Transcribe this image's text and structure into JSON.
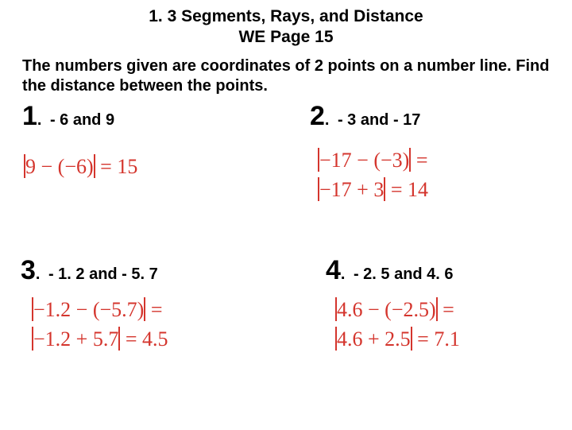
{
  "heading": {
    "line1": "1. 3 Segments, Rays, and Distance",
    "line2": "WE Page 15"
  },
  "intro": "The numbers given are coordinates of 2 points on a number line.  Find the distance between the points.",
  "colors": {
    "equation": "#d4352d",
    "text": "#000000",
    "background": "#ffffff"
  },
  "problems": {
    "p1": {
      "num": "1",
      "dot": ".",
      "q": "- 6  and  9",
      "eq1": "|9 − (−6)| = 15"
    },
    "p2": {
      "num": "2",
      "dot": ".",
      "q": "- 3  and  - 17",
      "eq1": "|−17 − (−3)| =",
      "eq2": "|−17 + 3| = 14"
    },
    "p3": {
      "num": "3",
      "dot": ".",
      "q": "- 1. 2  and  - 5. 7",
      "eq1": "|−1.2 − (−5.7)| =",
      "eq2": "|−1.2 + 5.7| = 4.5"
    },
    "p4": {
      "num": "4",
      "dot": ".",
      "q": "- 2. 5  and  4. 6",
      "eq1": "|4.6 − (−2.5)| =",
      "eq2": "|4.6 + 2.5| = 7.1"
    }
  }
}
